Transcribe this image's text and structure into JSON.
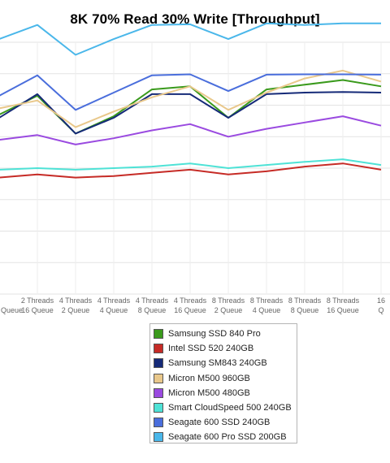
{
  "chart_data": {
    "type": "line",
    "title": "8K 70% Read 30% Write [Throughput]",
    "xlabel": "",
    "ylabel": "",
    "grid": true,
    "legend_position": "bottom",
    "categories": [
      [
        "",
        "Queue"
      ],
      [
        "2 Threads",
        "16 Queue"
      ],
      [
        "4 Threads",
        "2 Queue"
      ],
      [
        "4 Threads",
        "4 Queue"
      ],
      [
        "4 Threads",
        "8 Queue"
      ],
      [
        "4 Threads",
        "16 Queue"
      ],
      [
        "8 Threads",
        "2 Queue"
      ],
      [
        "8 Threads",
        "4 Queue"
      ],
      [
        "8 Threads",
        "8 Queue"
      ],
      [
        "8 Threads",
        "16 Queue"
      ],
      [
        "16",
        "Q"
      ]
    ],
    "series": [
      {
        "name": "Samsung SSD 840 Pro",
        "color": "#3a9a1c",
        "values": [
          5.7,
          6.3,
          5.1,
          5.65,
          6.5,
          6.6,
          5.6,
          6.5,
          6.65,
          6.8,
          6.6
        ]
      },
      {
        "name": "Intel SSD 520 240GB",
        "color": "#c62b26",
        "values": [
          3.7,
          3.8,
          3.7,
          3.75,
          3.85,
          3.95,
          3.8,
          3.9,
          4.05,
          4.15,
          3.95
        ]
      },
      {
        "name": "Samsung SM843 240GB",
        "color": "#152a78",
        "values": [
          5.6,
          6.35,
          5.1,
          5.6,
          6.35,
          6.35,
          5.6,
          6.35,
          6.4,
          6.42,
          6.4
        ]
      },
      {
        "name": "Micron M500 960GB",
        "color": "#e9c88b",
        "values": [
          5.9,
          6.15,
          5.3,
          5.8,
          6.25,
          6.6,
          5.85,
          6.4,
          6.85,
          7.1,
          6.75
        ]
      },
      {
        "name": "Micron M500 480GB",
        "color": "#9a4ae0",
        "values": [
          4.9,
          5.05,
          4.75,
          4.95,
          5.2,
          5.4,
          5.0,
          5.25,
          5.45,
          5.65,
          5.35
        ]
      },
      {
        "name": "Smart CloudSpeed 500 240GB",
        "color": "#4ee2d6",
        "values": [
          3.95,
          4.0,
          3.95,
          4.0,
          4.05,
          4.15,
          4.0,
          4.1,
          4.2,
          4.28,
          4.1
        ]
      },
      {
        "name": "Seagate 600 SSD 240GB",
        "color": "#4a6edc",
        "values": [
          6.3,
          6.95,
          5.85,
          6.4,
          6.95,
          6.98,
          6.45,
          6.97,
          6.98,
          6.98,
          6.97
        ]
      },
      {
        "name": "Seagate 600 Pro SSD 200GB",
        "color": "#4ab7ea",
        "values": [
          8.1,
          8.55,
          7.6,
          8.1,
          8.55,
          8.57,
          8.1,
          8.6,
          8.55,
          8.6,
          8.6
        ]
      }
    ]
  }
}
